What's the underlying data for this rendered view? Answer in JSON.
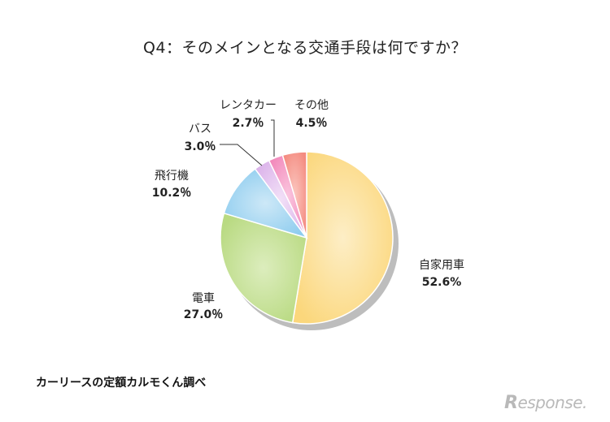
{
  "title": "Q4：そのメインとなる交通手段は何ですか？",
  "source": "カーリースの定額カルモくん調べ",
  "logo": "Response.",
  "chart_data": {
    "type": "pie",
    "title": "Q4：そのメインとなる交通手段は何ですか？",
    "start_angle_deg": 0,
    "direction": "clockwise",
    "categories": [
      "自家用車",
      "電車",
      "飛行機",
      "バス",
      "レンタカー",
      "その他"
    ],
    "values": [
      52.6,
      27.0,
      10.2,
      3.0,
      2.7,
      4.5
    ],
    "value_labels": [
      "52.6%",
      "27.0％",
      "10.2％",
      "3.0％",
      "2.7％",
      "4.5％"
    ],
    "colors": [
      "#fce3a0",
      "#c9e39a",
      "#a9d8f2",
      "#e6c6f0",
      "#f6a0c9",
      "#f8a49a"
    ]
  }
}
